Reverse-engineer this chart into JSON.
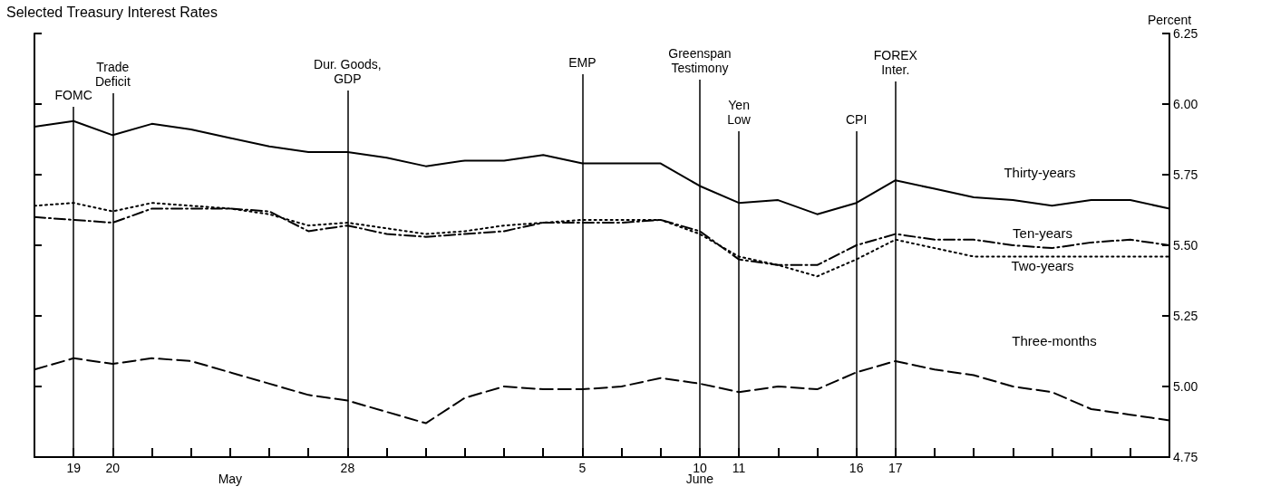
{
  "chart_data": {
    "type": "line",
    "title": "Selected Treasury Interest Rates",
    "ylabel": "Percent",
    "categories": [
      null,
      "19",
      "20",
      null,
      null,
      "\nMay",
      null,
      null,
      "28",
      null,
      null,
      null,
      null,
      null,
      "5",
      null,
      null,
      "10\nJune",
      "11",
      null,
      null,
      "16",
      "17",
      null,
      null,
      null,
      null,
      null,
      null,
      null
    ],
    "series": [
      {
        "name": "Thirty-years",
        "color": "#000000",
        "line_style": "solid",
        "values": [
          5.92,
          5.94,
          5.89,
          5.93,
          5.91,
          5.88,
          5.85,
          5.83,
          5.83,
          5.81,
          5.78,
          5.8,
          5.8,
          5.82,
          5.79,
          5.79,
          5.79,
          5.71,
          5.65,
          5.66,
          5.61,
          5.65,
          5.73,
          5.7,
          5.67,
          5.66,
          5.64,
          5.66,
          5.66,
          5.63
        ]
      },
      {
        "name": "Ten-years",
        "color": "#000000",
        "line_style": "dashdot",
        "values": [
          5.6,
          5.59,
          5.58,
          5.63,
          5.63,
          5.63,
          5.62,
          5.55,
          5.57,
          5.54,
          5.53,
          5.54,
          5.55,
          5.58,
          5.58,
          5.58,
          5.59,
          5.55,
          5.45,
          5.43,
          5.43,
          5.5,
          5.54,
          5.52,
          5.52,
          5.5,
          5.49,
          5.51,
          5.52,
          5.5
        ]
      },
      {
        "name": "Two-years",
        "color": "#000000",
        "line_style": "dotted",
        "values": [
          5.64,
          5.65,
          5.62,
          5.65,
          5.64,
          5.63,
          5.61,
          5.57,
          5.58,
          5.56,
          5.54,
          5.55,
          5.57,
          5.58,
          5.59,
          5.59,
          5.59,
          5.54,
          5.46,
          5.43,
          5.39,
          5.45,
          5.52,
          5.49,
          5.46,
          5.46,
          5.46,
          5.46,
          5.46,
          5.46
        ]
      },
      {
        "name": "Three-months",
        "color": "#000000",
        "line_style": "dashed",
        "values": [
          5.06,
          5.1,
          5.08,
          5.1,
          5.09,
          5.05,
          5.01,
          4.97,
          4.95,
          4.91,
          4.87,
          4.96,
          5.0,
          4.99,
          4.99,
          5.0,
          5.03,
          5.01,
          4.98,
          5.0,
          4.99,
          5.05,
          5.09,
          5.06,
          5.04,
          5.0,
          4.98,
          4.92,
          4.9,
          4.88
        ]
      }
    ],
    "ylim": [
      4.75,
      6.25
    ],
    "yticks": [
      4.75,
      {
        "value": 5,
        "label": "5.00"
      },
      5.25,
      {
        "value": 5.5,
        "label": "5.50"
      },
      5.75,
      {
        "value": 6,
        "label": "6.00"
      },
      6.25
    ],
    "ref_lines": [
      {
        "axis": "x",
        "value": "19",
        "label": "FOMC"
      },
      {
        "axis": "x",
        "value": "20",
        "label": "Trade\nDeficit"
      },
      {
        "axis": "x",
        "value": "28",
        "label": "Dur. Goods,\nGDP"
      },
      {
        "axis": "x",
        "value": "5",
        "label": "EMP"
      },
      {
        "axis": "x",
        "value": "10\nJune",
        "label": "Greenspan\nTestimony"
      },
      {
        "axis": "x",
        "value": "11",
        "label": "Yen\nLow"
      },
      {
        "axis": "x",
        "value": "16",
        "label": "CPI"
      },
      {
        "axis": "x",
        "value": "17",
        "label": "FOREX\nInter."
      }
    ],
    "grid": false,
    "legend": false,
    "marker": "none",
    "tick_labels": "xy"
  }
}
